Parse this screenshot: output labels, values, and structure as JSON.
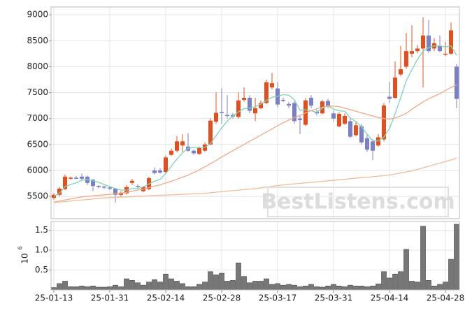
{
  "chart_data": [
    {
      "type": "candlestick",
      "categories": [
        "25-01-13",
        null,
        null,
        null,
        null,
        null,
        null,
        null,
        null,
        null,
        "25-01-31",
        null,
        null,
        null,
        null,
        null,
        null,
        null,
        null,
        null,
        "25-02-14",
        null,
        null,
        null,
        null,
        null,
        null,
        null,
        null,
        null,
        "25-02-28",
        null,
        null,
        null,
        null,
        null,
        null,
        null,
        null,
        null,
        "25-03-17",
        null,
        null,
        null,
        null,
        null,
        null,
        null,
        null,
        null,
        "25-03-31",
        null,
        null,
        null,
        null,
        null,
        null,
        null,
        null,
        null,
        "25-04-14",
        null,
        null,
        null,
        null,
        null,
        null,
        null,
        null,
        null,
        "25-04-28",
        null,
        null
      ],
      "open": [
        5470,
        5530,
        5640,
        5840,
        5860,
        5880,
        5880,
        5820,
        5700,
        5690,
        5670,
        5650,
        5530,
        5560,
        5760,
        5700,
        5600,
        5640,
        6000,
        6000,
        5970,
        6300,
        6380,
        6480,
        6460,
        6380,
        6320,
        6380,
        6500,
        6940,
        7130,
        7070,
        7070,
        7030,
        7360,
        7400,
        7100,
        7200,
        7300,
        7600,
        7580,
        7360,
        7280,
        7300,
        7000,
        6880,
        7400,
        7130,
        7100,
        7340,
        7100,
        6850,
        6900,
        6950,
        6680,
        6850,
        6620,
        6560,
        6480,
        6600,
        7420,
        7400,
        7850,
        8000,
        8250,
        8300,
        8350,
        8600,
        8350,
        8400,
        8230,
        8250,
        8000
      ],
      "high": [
        5560,
        5680,
        5920,
        5880,
        5890,
        5940,
        5900,
        5840,
        5720,
        5710,
        5700,
        5660,
        5600,
        5720,
        5840,
        5730,
        5700,
        5880,
        6060,
        6040,
        6290,
        6420,
        6660,
        6700,
        6720,
        6400,
        6460,
        6540,
        7000,
        7500,
        7580,
        7450,
        7100,
        7500,
        7600,
        7450,
        7400,
        7350,
        7750,
        7880,
        7700,
        7400,
        7320,
        7330,
        7050,
        7400,
        7450,
        7180,
        7360,
        7380,
        7150,
        7120,
        7100,
        7000,
        6950,
        6900,
        6700,
        6600,
        6700,
        7300,
        7700,
        8100,
        8400,
        8650,
        8800,
        8420,
        8950,
        8900,
        8550,
        8600,
        8480,
        8850,
        8050
      ],
      "low": [
        5440,
        5500,
        5620,
        5820,
        5830,
        5800,
        5720,
        5600,
        5660,
        5640,
        5620,
        5380,
        5500,
        5540,
        5720,
        5660,
        5580,
        5620,
        5920,
        5940,
        5950,
        6280,
        6350,
        6350,
        6360,
        6300,
        6300,
        6360,
        6480,
        6900,
        6900,
        7000,
        7000,
        7000,
        7320,
        7100,
        6950,
        7180,
        7280,
        7560,
        7220,
        7320,
        7200,
        6900,
        6700,
        6860,
        7200,
        7060,
        7080,
        7200,
        6950,
        6830,
        6880,
        6620,
        6660,
        6500,
        6360,
        6200,
        6460,
        6560,
        7300,
        7380,
        7820,
        7960,
        8180,
        8260,
        7600,
        8260,
        8300,
        8280,
        8200,
        8230,
        7200
      ],
      "close": [
        5530,
        5650,
        5880,
        5860,
        5850,
        5840,
        5760,
        5700,
        5680,
        5670,
        5650,
        5530,
        5570,
        5680,
        5800,
        5690,
        5680,
        5850,
        5950,
        5960,
        6250,
        6380,
        6560,
        6560,
        6380,
        6330,
        6430,
        6500,
        6960,
        7110,
        7110,
        7050,
        7040,
        7350,
        7400,
        7150,
        7200,
        7300,
        7700,
        7680,
        7270,
        7350,
        7250,
        6950,
        6970,
        7350,
        7250,
        7100,
        7330,
        7240,
        7000,
        7090,
        7050,
        6650,
        6870,
        6540,
        6400,
        6380,
        6640,
        7250,
        7380,
        7790,
        7950,
        8300,
        8300,
        8350,
        8600,
        8300,
        8450,
        8300,
        8250,
        8700,
        7380
      ],
      "up_color": "#e0501e",
      "down_color": "#7b7fc4",
      "series": [
        {
          "color": "#7fd3b4",
          "values": [
            5500,
            5560,
            5690,
            5730,
            5760,
            5810,
            5830,
            5800,
            5770,
            5730,
            5690,
            5650,
            5620,
            5620,
            5650,
            5650,
            5680,
            5740,
            5790,
            5830,
            5940,
            6080,
            6220,
            6340,
            6430,
            6440,
            6450,
            6440,
            6520,
            6670,
            6820,
            6950,
            7050,
            7130,
            7190,
            7200,
            7230,
            7280,
            7350,
            7410,
            7430,
            7460,
            7450,
            7360,
            7160,
            7170,
            7150,
            7120,
            7200,
            7250,
            7180,
            7150,
            7140,
            7010,
            6940,
            6840,
            6700,
            6570,
            6570,
            6640,
            6810,
            7090,
            7400,
            7730,
            7940,
            8140,
            8300,
            8370,
            8400,
            8400,
            8380,
            8400,
            8220
          ]
        },
        {
          "color": "#eeaa88",
          "values": [
            5390,
            5410,
            5430,
            5450,
            5470,
            5490,
            5500,
            5510,
            5520,
            5530,
            5540,
            5550,
            5560,
            5580,
            5600,
            5620,
            5640,
            5670,
            5700,
            5720,
            5760,
            5790,
            5830,
            5870,
            5910,
            5960,
            6010,
            6070,
            6130,
            6190,
            6260,
            6320,
            6380,
            6440,
            6500,
            6560,
            6620,
            6680,
            6740,
            6800,
            6860,
            6920,
            6970,
            7020,
            7060,
            7110,
            7150,
            7190,
            7220,
            7240,
            7240,
            7230,
            7200,
            7170,
            7140,
            7110,
            7080,
            7050,
            7020,
            7000,
            6990,
            7010,
            7050,
            7100,
            7180,
            7250,
            7320,
            7380,
            7430,
            7480,
            7540,
            7600,
            7650
          ]
        },
        {
          "color": "#f0bc9c",
          "values": [
            5380,
            5390,
            5400,
            5410,
            5420,
            5430,
            5440,
            5450,
            5460,
            5470,
            5475,
            5480,
            5485,
            5490,
            5495,
            5500,
            5505,
            5510,
            5515,
            5520,
            5525,
            5530,
            5535,
            5540,
            5545,
            5550,
            5555,
            5560,
            5570,
            5580,
            5590,
            5600,
            5610,
            5620,
            5630,
            5640,
            5650,
            5665,
            5680,
            5695,
            5710,
            5720,
            5730,
            5740,
            5750,
            5760,
            5770,
            5780,
            5790,
            5800,
            5810,
            5820,
            5830,
            5840,
            5850,
            5860,
            5870,
            5880,
            5890,
            5900,
            5910,
            5930,
            5950,
            5970,
            5990,
            6020,
            6050,
            6080,
            6110,
            6140,
            6170,
            6200,
            6240
          ]
        }
      ],
      "ylim": [
        5070,
        9150
      ],
      "yticks": [
        5500,
        6000,
        6500,
        7000,
        7500,
        8000,
        8500,
        9000
      ],
      "grid": true,
      "watermark": "BestListens.com"
    },
    {
      "type": "bar",
      "values": [
        0.06,
        0.16,
        0.22,
        0.08,
        0.08,
        0.1,
        0.08,
        0.1,
        0.07,
        0.07,
        0.08,
        0.12,
        0.08,
        0.28,
        0.24,
        0.18,
        0.12,
        0.2,
        0.26,
        0.2,
        0.4,
        0.28,
        0.22,
        0.16,
        0.08,
        0.08,
        0.14,
        0.2,
        0.46,
        0.38,
        0.42,
        0.22,
        0.24,
        0.68,
        0.34,
        0.18,
        0.22,
        0.22,
        0.28,
        0.14,
        0.16,
        0.12,
        0.14,
        0.12,
        0.08,
        0.1,
        0.14,
        0.08,
        0.07,
        0.1,
        0.14,
        0.1,
        0.08,
        0.12,
        0.1,
        0.1,
        0.08,
        0.1,
        0.15,
        0.46,
        0.3,
        0.4,
        0.46,
        1.02,
        0.22,
        0.2,
        1.6,
        0.24,
        0.1,
        0.14,
        0.2,
        0.77,
        1.65
      ],
      "color": "#777777",
      "ylim": [
        0,
        1.72
      ],
      "yticks": [
        0.5,
        {
          "value": 1,
          "label": "1.0"
        },
        1.5
      ],
      "grid": true,
      "offset_label": {
        "base": "10",
        "exponent": "6"
      }
    }
  ]
}
